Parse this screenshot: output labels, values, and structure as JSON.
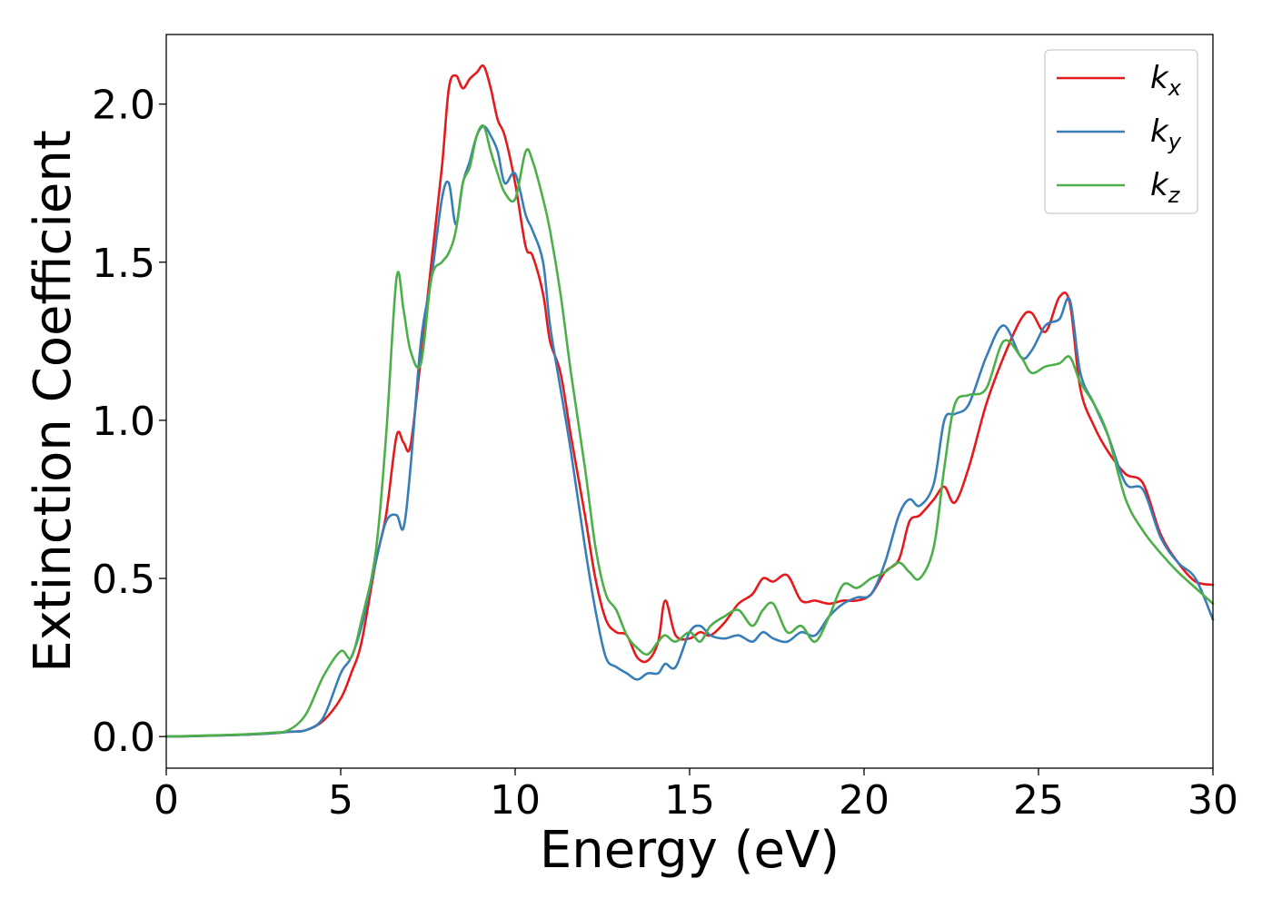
{
  "chart_data": {
    "type": "line",
    "xlabel": "Energy (eV)",
    "ylabel": "Extinction Coefficient",
    "xlim": [
      0,
      30
    ],
    "ylim": [
      -0.1,
      2.22
    ],
    "xticks": [
      0,
      5,
      10,
      15,
      20,
      25,
      30
    ],
    "xtick_labels": [
      "0",
      "5",
      "10",
      "15",
      "20",
      "25",
      "30"
    ],
    "yticks": [
      0.0,
      0.5,
      1.0,
      1.5,
      2.0
    ],
    "ytick_labels": [
      "0.0",
      "0.5",
      "1.0",
      "1.5",
      "2.0"
    ],
    "grid": false,
    "legend_position": "top-right",
    "series": [
      {
        "name": "k",
        "subscript": "x",
        "color": "#e41a1c",
        "x": [
          0,
          1,
          2,
          3,
          3.5,
          4,
          4.5,
          5,
          5.3,
          5.6,
          6,
          6.3,
          6.6,
          6.8,
          7,
          7.3,
          7.6,
          7.9,
          8.1,
          8.3,
          8.5,
          8.7,
          8.9,
          9.1,
          9.3,
          9.5,
          9.7,
          10,
          10.3,
          10.5,
          10.8,
          11,
          11.3,
          11.6,
          12,
          12.3,
          12.6,
          12.9,
          13.2,
          13.5,
          13.8,
          14.1,
          14.3,
          14.6,
          15,
          15.3,
          15.6,
          16,
          16.4,
          16.8,
          17.1,
          17.4,
          17.8,
          18.2,
          18.6,
          19,
          19.4,
          19.8,
          20.2,
          20.6,
          21,
          21.3,
          21.6,
          22,
          22.3,
          22.6,
          23,
          23.5,
          24,
          24.5,
          24.8,
          25.2,
          25.6,
          25.9,
          26.2,
          26.6,
          27,
          27.5,
          28,
          28.5,
          29,
          29.5,
          30
        ],
        "y": [
          0,
          0.002,
          0.005,
          0.01,
          0.015,
          0.02,
          0.05,
          0.12,
          0.2,
          0.3,
          0.55,
          0.7,
          0.95,
          0.93,
          0.92,
          1.2,
          1.5,
          1.8,
          2.05,
          2.09,
          2.05,
          2.08,
          2.1,
          2.12,
          2.05,
          1.95,
          1.9,
          1.75,
          1.55,
          1.52,
          1.4,
          1.25,
          1.15,
          0.95,
          0.7,
          0.5,
          0.37,
          0.33,
          0.32,
          0.25,
          0.24,
          0.3,
          0.43,
          0.32,
          0.31,
          0.33,
          0.32,
          0.36,
          0.42,
          0.45,
          0.5,
          0.49,
          0.51,
          0.43,
          0.43,
          0.42,
          0.43,
          0.43,
          0.45,
          0.52,
          0.56,
          0.68,
          0.7,
          0.75,
          0.79,
          0.74,
          0.85,
          1.05,
          1.2,
          1.32,
          1.34,
          1.28,
          1.39,
          1.37,
          1.1,
          0.98,
          0.9,
          0.83,
          0.8,
          0.64,
          0.55,
          0.49,
          0.48
        ]
      },
      {
        "name": "k",
        "subscript": "y",
        "color": "#377eb8",
        "x": [
          0,
          1,
          2,
          3,
          3.5,
          4,
          4.5,
          5,
          5.3,
          5.6,
          6,
          6.3,
          6.6,
          6.8,
          7,
          7.3,
          7.6,
          7.9,
          8.1,
          8.3,
          8.5,
          8.7,
          8.9,
          9.1,
          9.3,
          9.5,
          9.7,
          10,
          10.3,
          10.5,
          10.8,
          11,
          11.3,
          11.6,
          12,
          12.3,
          12.6,
          12.9,
          13.2,
          13.5,
          13.8,
          14.1,
          14.3,
          14.6,
          15,
          15.3,
          15.6,
          16,
          16.4,
          16.8,
          17.1,
          17.4,
          17.8,
          18.2,
          18.6,
          19,
          19.4,
          19.8,
          20.2,
          20.6,
          21,
          21.3,
          21.6,
          22,
          22.3,
          22.6,
          23,
          23.5,
          24,
          24.5,
          24.8,
          25.2,
          25.6,
          25.9,
          26.2,
          26.6,
          27,
          27.5,
          28,
          28.5,
          29,
          29.5,
          30
        ],
        "y": [
          0,
          0.002,
          0.005,
          0.01,
          0.015,
          0.02,
          0.06,
          0.2,
          0.25,
          0.35,
          0.55,
          0.68,
          0.7,
          0.66,
          0.85,
          1.25,
          1.45,
          1.7,
          1.75,
          1.62,
          1.75,
          1.82,
          1.9,
          1.93,
          1.9,
          1.85,
          1.75,
          1.78,
          1.65,
          1.6,
          1.5,
          1.3,
          1.1,
          0.9,
          0.6,
          0.4,
          0.25,
          0.22,
          0.2,
          0.18,
          0.2,
          0.2,
          0.23,
          0.22,
          0.33,
          0.35,
          0.32,
          0.31,
          0.32,
          0.3,
          0.33,
          0.31,
          0.3,
          0.33,
          0.32,
          0.38,
          0.42,
          0.44,
          0.45,
          0.55,
          0.7,
          0.75,
          0.73,
          0.8,
          1.0,
          1.02,
          1.05,
          1.2,
          1.3,
          1.2,
          1.22,
          1.3,
          1.32,
          1.38,
          1.15,
          1.05,
          0.95,
          0.8,
          0.78,
          0.63,
          0.55,
          0.5,
          0.37
        ]
      },
      {
        "name": "k",
        "subscript": "z",
        "color": "#4daf4a",
        "x": [
          0,
          1,
          2,
          3,
          3.5,
          4,
          4.5,
          5,
          5.3,
          5.6,
          6,
          6.3,
          6.6,
          6.8,
          7,
          7.3,
          7.6,
          7.9,
          8.1,
          8.3,
          8.5,
          8.7,
          8.9,
          9.1,
          9.3,
          9.5,
          9.7,
          10,
          10.3,
          10.5,
          10.8,
          11,
          11.3,
          11.6,
          12,
          12.3,
          12.6,
          12.9,
          13.2,
          13.5,
          13.8,
          14.1,
          14.3,
          14.6,
          15,
          15.3,
          15.6,
          16,
          16.4,
          16.8,
          17.1,
          17.4,
          17.8,
          18.2,
          18.6,
          19,
          19.4,
          19.8,
          20.2,
          20.6,
          21,
          21.3,
          21.6,
          22,
          22.3,
          22.6,
          23,
          23.5,
          24,
          24.5,
          24.8,
          25.2,
          25.6,
          25.9,
          26.2,
          26.6,
          27,
          27.5,
          28,
          28.5,
          29,
          29.5,
          30
        ],
        "y": [
          0,
          0.003,
          0.006,
          0.012,
          0.02,
          0.07,
          0.19,
          0.27,
          0.25,
          0.37,
          0.58,
          0.95,
          1.45,
          1.35,
          1.22,
          1.18,
          1.45,
          1.5,
          1.53,
          1.6,
          1.75,
          1.8,
          1.9,
          1.93,
          1.85,
          1.78,
          1.72,
          1.7,
          1.85,
          1.82,
          1.7,
          1.6,
          1.4,
          1.15,
          0.85,
          0.6,
          0.45,
          0.4,
          0.32,
          0.28,
          0.26,
          0.3,
          0.32,
          0.3,
          0.33,
          0.3,
          0.35,
          0.38,
          0.4,
          0.35,
          0.4,
          0.42,
          0.33,
          0.35,
          0.3,
          0.38,
          0.48,
          0.47,
          0.5,
          0.52,
          0.55,
          0.52,
          0.5,
          0.6,
          0.85,
          1.05,
          1.08,
          1.1,
          1.25,
          1.2,
          1.15,
          1.17,
          1.18,
          1.2,
          1.12,
          1.05,
          0.95,
          0.75,
          0.65,
          0.58,
          0.52,
          0.47,
          0.42
        ]
      }
    ]
  }
}
